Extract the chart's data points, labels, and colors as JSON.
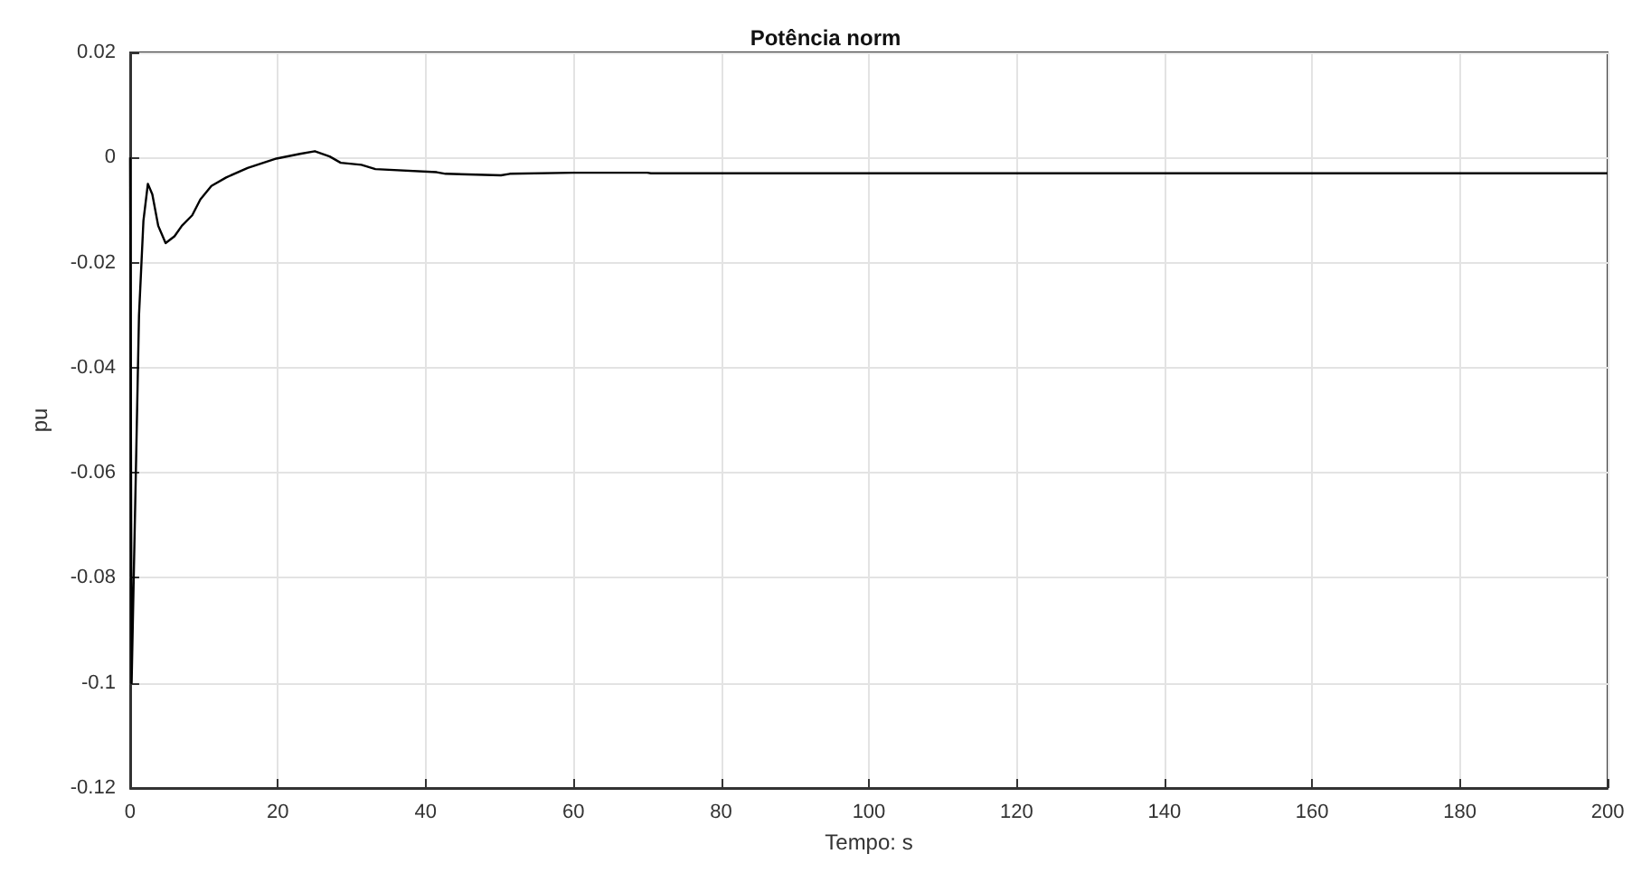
{
  "chart_data": {
    "type": "line",
    "title": "Potência norm",
    "xlabel": "Tempo: s",
    "ylabel": "pu",
    "x": [
      0,
      0.2,
      1.2,
      1.8,
      2.4,
      3,
      3.8,
      4.8,
      6,
      7,
      8.4,
      9.5,
      11,
      13,
      15.9,
      19.8,
      23,
      25,
      27,
      28.5,
      31.3,
      33.2,
      41.5,
      42.7,
      50.2,
      51.4,
      60,
      70,
      70.5,
      200
    ],
    "series": [
      {
        "color": "#000000",
        "values": [
          0,
          -0.1,
          -0.03,
          -0.012,
          -0.005,
          -0.007,
          -0.013,
          -0.0163,
          -0.015,
          -0.013,
          -0.011,
          -0.008,
          -0.0054,
          -0.0038,
          -0.002,
          -0.0002,
          0.0007,
          0.0012,
          0.0002,
          -0.001,
          -0.0014,
          -0.0022,
          -0.0028,
          -0.0031,
          -0.0034,
          -0.0031,
          -0.0029,
          -0.0029,
          -0.003,
          -0.003
        ]
      }
    ],
    "xlim": [
      0,
      200
    ],
    "xticks": [
      0,
      20,
      40,
      60,
      80,
      100,
      120,
      140,
      160,
      180,
      200
    ],
    "ylim": [
      -0.12,
      0.02
    ],
    "yticks": [
      -0.12,
      -0.1,
      -0.08,
      -0.06,
      -0.04,
      -0.02,
      0,
      0.02
    ],
    "grid": true,
    "marker": "none",
    "line_style": "solid"
  }
}
